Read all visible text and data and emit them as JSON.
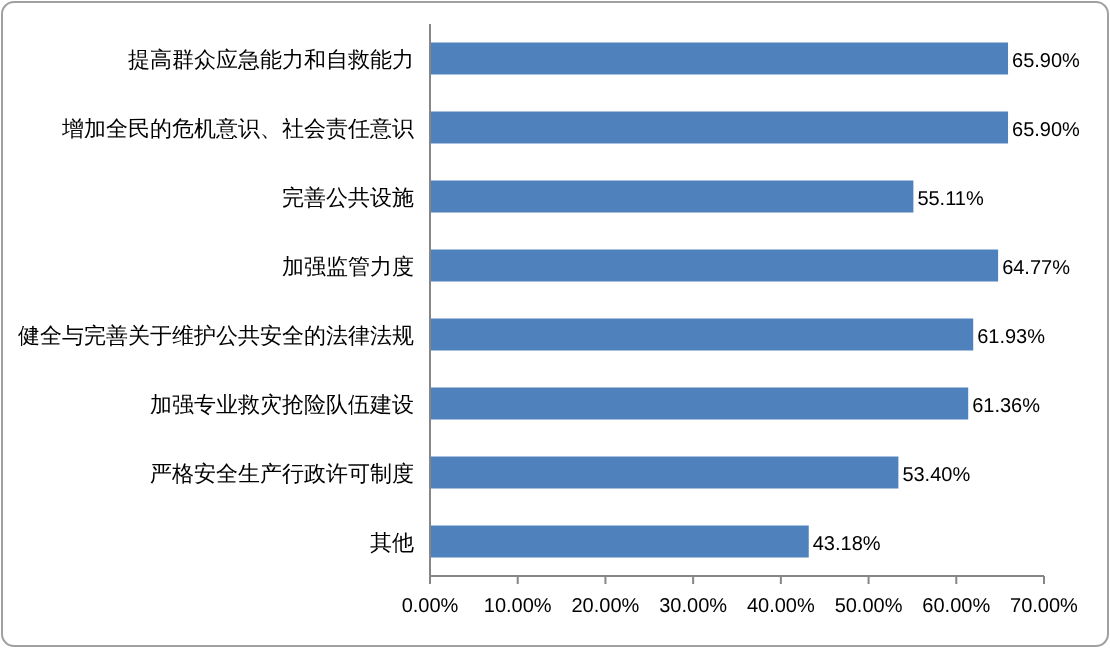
{
  "chart_data": {
    "type": "bar",
    "orientation": "horizontal",
    "categories": [
      "提高群众应急能力和自救能力",
      "增加全民的危机意识、社会责任意识",
      "完善公共设施",
      "加强监管力度",
      "健全与完善关于维护公共安全的法律法规",
      "加强专业救灾抢险队伍建设",
      "严格安全生产行政许可制度",
      "其他"
    ],
    "values": [
      65.9,
      65.9,
      55.11,
      64.77,
      61.93,
      61.36,
      53.4,
      43.18
    ],
    "value_labels": [
      "65.90%",
      "65.90%",
      "55.11%",
      "64.77%",
      "61.93%",
      "61.36%",
      "53.40%",
      "43.18%"
    ],
    "color": "#4f81bd",
    "xlim": [
      0,
      70
    ],
    "xticks": [
      {
        "value": 0,
        "label": "0.00%"
      },
      {
        "value": 10,
        "label": "10.00%"
      },
      {
        "value": 20,
        "label": "20.00%"
      },
      {
        "value": 30,
        "label": "30.00%"
      },
      {
        "value": 40,
        "label": "40.00%"
      },
      {
        "value": 50,
        "label": "50.00%"
      },
      {
        "value": 60,
        "label": "60.00%"
      },
      {
        "value": 70,
        "label": "70.00%"
      }
    ],
    "grid": false
  }
}
